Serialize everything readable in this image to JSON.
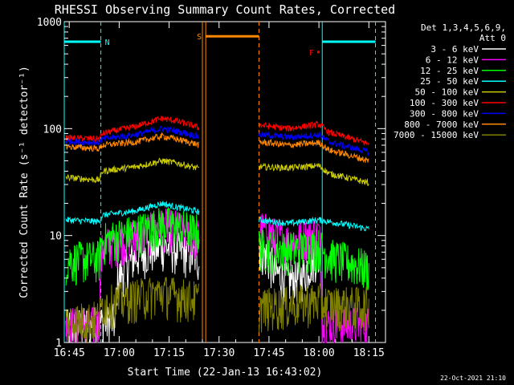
{
  "chart_data": {
    "type": "line",
    "title": "RHESSI Observing Summary Count Rates, Corrected",
    "xlabel": "Start Time (22-Jan-13 16:43:02)",
    "ylabel": "Corrected Count Rate (s⁻¹ detector⁻¹)",
    "y_log": true,
    "ylim": [
      1,
      1000
    ],
    "xlim_minutes": [
      -1.5,
      95
    ],
    "x_ticks": [
      {
        "label": "16:45",
        "t": 0
      },
      {
        "label": "17:00",
        "t": 15
      },
      {
        "label": "17:15",
        "t": 30
      },
      {
        "label": "17:30",
        "t": 45
      },
      {
        "label": "17:45",
        "t": 60
      },
      {
        "label": "18:00",
        "t": 75
      },
      {
        "label": "18:15",
        "t": 90
      }
    ],
    "y_ticks": [
      {
        "label": "1",
        "v": 1
      },
      {
        "label": "10",
        "v": 10
      },
      {
        "label": "100",
        "v": 100
      },
      {
        "label": "1000",
        "v": 1000
      }
    ],
    "legend_header": [
      "Det 1,3,4,5,6,9,",
      "Att 0"
    ],
    "legend_position": "right",
    "series": [
      {
        "name": "3 - 6 keV",
        "color": "#ffffff",
        "segments": [
          [
            [
              -1,
              1.4
            ],
            [
              14,
              1.6
            ],
            [
              14.5,
              4
            ],
            [
              20,
              6.5
            ],
            [
              28,
              8
            ],
            [
              32,
              7.5
            ],
            [
              38,
              6.5
            ],
            [
              39,
              6
            ]
          ],
          [
            [
              57,
              8
            ],
            [
              62,
              4.5
            ],
            [
              66,
              3.8
            ],
            [
              70,
              4.2
            ],
            [
              74,
              6.5
            ],
            [
              75,
              6
            ]
          ]
        ]
      },
      {
        "name": "6 - 12 keV",
        "color": "#ff00ff",
        "segments": [
          [
            [
              -1,
              1.5
            ],
            [
              9,
              1.5
            ],
            [
              10,
              8
            ],
            [
              20,
              10
            ],
            [
              28,
              12.5
            ],
            [
              32,
              12
            ],
            [
              38,
              10
            ],
            [
              39,
              10
            ]
          ],
          [
            [
              57,
              12
            ],
            [
              62,
              10
            ],
            [
              66,
              9
            ],
            [
              70,
              9.5
            ],
            [
              75,
              11
            ],
            [
              76,
              1.5
            ],
            [
              90,
              1.5
            ]
          ]
        ]
      },
      {
        "name": "12 - 25 keV",
        "color": "#00ff00",
        "segments": [
          [
            [
              -1,
              6
            ],
            [
              9,
              6.2
            ],
            [
              10,
              9
            ],
            [
              20,
              11
            ],
            [
              28,
              13
            ],
            [
              32,
              12.5
            ],
            [
              38,
              11
            ],
            [
              39,
              11
            ]
          ],
          [
            [
              57,
              8
            ],
            [
              66,
              7.5
            ],
            [
              75,
              8
            ],
            [
              78,
              6.5
            ],
            [
              90,
              5
            ]
          ]
        ]
      },
      {
        "name": "25 - 50 keV",
        "color": "#00ffff",
        "segments": [
          [
            [
              -1,
              14
            ],
            [
              9,
              13.5
            ],
            [
              10,
              15.5
            ],
            [
              20,
              17
            ],
            [
              28,
              20
            ],
            [
              32,
              18.5
            ],
            [
              38,
              17
            ],
            [
              39,
              16.5
            ]
          ],
          [
            [
              57,
              14
            ],
            [
              66,
              13
            ],
            [
              75,
              14
            ],
            [
              78,
              13.5
            ],
            [
              90,
              11.5
            ]
          ]
        ]
      },
      {
        "name": "50 - 100 keV",
        "color": "#cccc00",
        "segments": [
          [
            [
              -1,
              35
            ],
            [
              9,
              33
            ],
            [
              10,
              40
            ],
            [
              20,
              44
            ],
            [
              28,
              50
            ],
            [
              32,
              48
            ],
            [
              38,
              43
            ],
            [
              39,
              42
            ]
          ],
          [
            [
              57,
              44
            ],
            [
              66,
              43
            ],
            [
              75,
              45
            ],
            [
              78,
              38
            ],
            [
              90,
              31
            ]
          ]
        ]
      },
      {
        "name": "100 - 300 keV",
        "color": "#ff0000",
        "segments": [
          [
            [
              -1,
              82
            ],
            [
              9,
              80
            ],
            [
              10,
              90
            ],
            [
              20,
              105
            ],
            [
              28,
              125
            ],
            [
              32,
              118
            ],
            [
              38,
              105
            ],
            [
              39,
              100
            ]
          ],
          [
            [
              57,
              108
            ],
            [
              66,
              100
            ],
            [
              75,
              110
            ],
            [
              78,
              92
            ],
            [
              90,
              72
            ]
          ]
        ]
      },
      {
        "name": "300 - 800 keV",
        "color": "#0000ff",
        "segments": [
          [
            [
              -1,
              76
            ],
            [
              9,
              74
            ],
            [
              10,
              80
            ],
            [
              20,
              88
            ],
            [
              28,
              100
            ],
            [
              32,
              95
            ],
            [
              38,
              86
            ],
            [
              39,
              84
            ]
          ],
          [
            [
              57,
              88
            ],
            [
              66,
              83
            ],
            [
              75,
              88
            ],
            [
              78,
              75
            ],
            [
              90,
              60
            ]
          ]
        ]
      },
      {
        "name": "800 - 7000 keV",
        "color": "#ff8800",
        "segments": [
          [
            [
              -1,
              68
            ],
            [
              9,
              65
            ],
            [
              10,
              70
            ],
            [
              20,
              75
            ],
            [
              28,
              85
            ],
            [
              32,
              80
            ],
            [
              38,
              72
            ],
            [
              39,
              70
            ]
          ],
          [
            [
              57,
              75
            ],
            [
              66,
              70
            ],
            [
              75,
              74
            ],
            [
              78,
              63
            ],
            [
              90,
              50
            ]
          ]
        ]
      },
      {
        "name": "7000 - 15000 keV",
        "color": "#808000",
        "segments": [
          [
            [
              -1,
              1.6
            ],
            [
              9,
              1.7
            ],
            [
              10,
              2.3
            ],
            [
              20,
              2.7
            ],
            [
              28,
              3
            ],
            [
              32,
              2.8
            ],
            [
              38,
              2.6
            ],
            [
              39,
              2.6
            ]
          ],
          [
            [
              57,
              2.2
            ],
            [
              66,
              2.3
            ],
            [
              75,
              2.5
            ],
            [
              78,
              2.3
            ],
            [
              90,
              2.3
            ]
          ]
        ]
      }
    ],
    "annotations": [
      {
        "label": "N",
        "color": "#00ffff",
        "t_start": -1.5,
        "t_end": 9.5,
        "y": 650
      },
      {
        "label": "N",
        "color": "#00ffff",
        "t_start": 76,
        "t_end": 92,
        "y": 650
      },
      {
        "label": "S",
        "color": "#ff8800",
        "t_start": 41,
        "t_end": 57,
        "y": 730
      },
      {
        "label": "F",
        "color": "#ff0000",
        "t_start": 74.5,
        "t_end": 75.2,
        "y": 520
      }
    ],
    "vertical_lines": [
      {
        "t": -1.5,
        "color": "#00ffff",
        "style": "solid"
      },
      {
        "t": 9.5,
        "color": "#00ffff",
        "style": "dashed"
      },
      {
        "t": 40,
        "color": "#ff8800",
        "style": "solid"
      },
      {
        "t": 41,
        "color": "#ff8800",
        "style": "solid"
      },
      {
        "t": 57,
        "color": "#ff8800",
        "style": "dashed"
      },
      {
        "t": 76,
        "color": "#00ffff",
        "style": "solid"
      },
      {
        "t": 92,
        "color": "#00ffff",
        "style": "dashed"
      }
    ]
  },
  "footer_timestamp": "22-Oct-2021 21:10"
}
